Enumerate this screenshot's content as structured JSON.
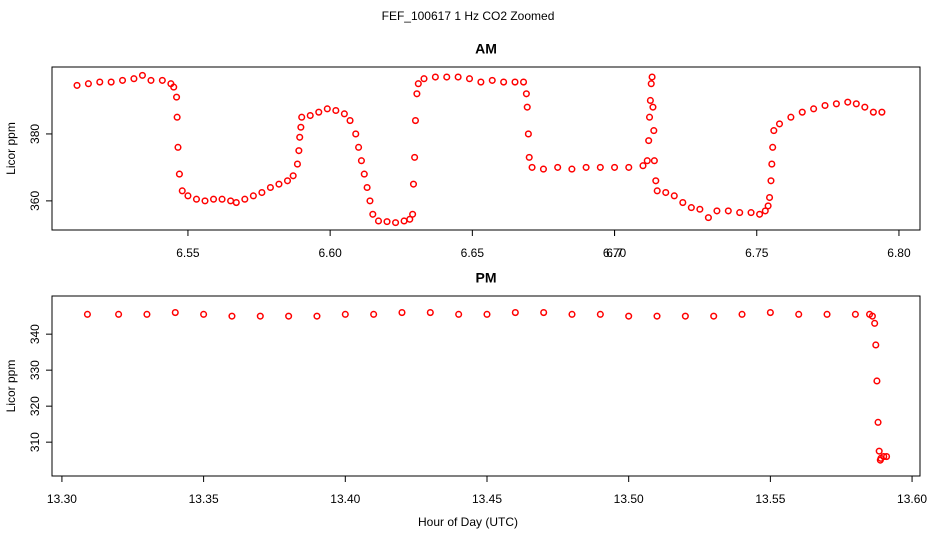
{
  "title": "FEF_100617  1 Hz CO2 Zoomed",
  "xlabel": "Hour of Day (UTC)",
  "chart_data": [
    {
      "type": "scatter",
      "title": "AM",
      "ylabel": "Licor ppm",
      "color": "#ff0000",
      "x": [
        6.511,
        6.515,
        6.519,
        6.523,
        6.527,
        6.531,
        6.534,
        6.537,
        6.541,
        6.544,
        6.545,
        6.546,
        6.5462,
        6.5465,
        6.547,
        6.548,
        6.55,
        6.553,
        6.556,
        6.559,
        6.562,
        6.565,
        6.567,
        6.57,
        6.573,
        6.576,
        6.579,
        6.582,
        6.585,
        6.587,
        6.5885,
        6.589,
        6.5893,
        6.5897,
        6.59,
        6.593,
        6.596,
        6.599,
        6.602,
        6.605,
        6.607,
        6.609,
        6.61,
        6.611,
        6.612,
        6.613,
        6.614,
        6.615,
        6.617,
        6.62,
        6.623,
        6.626,
        6.628,
        6.629,
        6.6293,
        6.6297,
        6.63,
        6.6305,
        6.631,
        6.633,
        6.637,
        6.641,
        6.645,
        6.649,
        6.653,
        6.657,
        6.661,
        6.665,
        6.668,
        6.669,
        6.6693,
        6.6697,
        6.67,
        6.671,
        6.675,
        6.68,
        6.685,
        6.69,
        6.695,
        6.7,
        6.705,
        6.71,
        6.7115,
        6.712,
        6.7123,
        6.7126,
        6.7129,
        6.7132,
        6.7135,
        6.7138,
        6.714,
        6.7145,
        6.715,
        6.718,
        6.721,
        6.724,
        6.727,
        6.73,
        6.733,
        6.736,
        6.74,
        6.744,
        6.748,
        6.751,
        6.753,
        6.754,
        6.7545,
        6.755,
        6.7553,
        6.7556,
        6.756,
        6.758,
        6.762,
        6.766,
        6.77,
        6.774,
        6.778,
        6.782,
        6.785,
        6.788,
        6.791,
        6.794
      ],
      "values": [
        394.5,
        395,
        395.5,
        395.5,
        396,
        396.5,
        397.5,
        396,
        396,
        395,
        394,
        391,
        385,
        376,
        368,
        363,
        361.5,
        360.5,
        360,
        360.5,
        360.5,
        360,
        359.5,
        360.5,
        361.5,
        362.5,
        364,
        365,
        366,
        367.5,
        371,
        375,
        379,
        382,
        385,
        385.5,
        386.5,
        387.5,
        387,
        386,
        384,
        380,
        376,
        372,
        368,
        364,
        360,
        356,
        354,
        353.8,
        353.5,
        354,
        354.5,
        356,
        365,
        373,
        384,
        392,
        395,
        396.5,
        397,
        397,
        397,
        396.5,
        395.5,
        396,
        395.5,
        395.5,
        395.5,
        392,
        388,
        380,
        373,
        370,
        369.5,
        370,
        369.5,
        370,
        370,
        370,
        370,
        370.5,
        372,
        378,
        385,
        390,
        395,
        397,
        388,
        381,
        372,
        366,
        363,
        362.5,
        361.5,
        359.5,
        358,
        357.5,
        355,
        357,
        357,
        356.5,
        356.5,
        356,
        357,
        358.5,
        361,
        366,
        371,
        376,
        381,
        383,
        385,
        386.5,
        387.5,
        388.5,
        389,
        389.5,
        389,
        388,
        386.5,
        386.5
      ],
      "xlim": [
        6.5022,
        6.8074
      ],
      "ylim": [
        351.3,
        400
      ],
      "xticks": [
        6.55,
        {
          "value": 6.6,
          "label": "6.60"
        },
        6.65,
        6.7,
        {
          "value": 6.7,
          "label": "6.70"
        },
        6.75,
        {
          "value": 6.8,
          "label": "6.80"
        }
      ],
      "yticks": [
        360,
        380
      ]
    },
    {
      "type": "scatter",
      "title": "PM",
      "ylabel": "Licor ppm",
      "color": "#ff0000",
      "x": [
        13.309,
        13.32,
        13.33,
        13.34,
        13.35,
        13.36,
        13.37,
        13.38,
        13.39,
        13.4,
        13.41,
        13.42,
        13.43,
        13.44,
        13.45,
        13.46,
        13.47,
        13.48,
        13.49,
        13.5,
        13.51,
        13.52,
        13.53,
        13.54,
        13.55,
        13.56,
        13.57,
        13.58,
        13.585,
        13.586,
        13.5868,
        13.5872,
        13.5876,
        13.588,
        13.5884,
        13.5888,
        13.589,
        13.59,
        13.591
      ],
      "values": [
        345.5,
        345.5,
        345.5,
        346,
        345.5,
        345,
        345,
        345,
        345,
        345.5,
        345.5,
        346,
        346,
        345.5,
        345.5,
        346,
        346,
        345.5,
        345.5,
        345,
        345,
        345,
        345,
        345.5,
        346,
        345.5,
        345.5,
        345.5,
        345.5,
        345,
        343,
        337,
        327,
        315.5,
        307.5,
        305,
        305.5,
        306,
        306
      ],
      "xlim": [
        13.2965,
        13.6028
      ],
      "ylim": [
        300.6,
        350.6
      ],
      "xticks": [
        {
          "value": 13.3,
          "label": "13.30"
        },
        13.35,
        {
          "value": 13.4,
          "label": "13.40"
        },
        13.45,
        {
          "value": 13.5,
          "label": "13.50"
        },
        13.55,
        {
          "value": 13.6,
          "label": "13.60"
        }
      ],
      "yticks": [
        310,
        320,
        330,
        340
      ]
    }
  ]
}
